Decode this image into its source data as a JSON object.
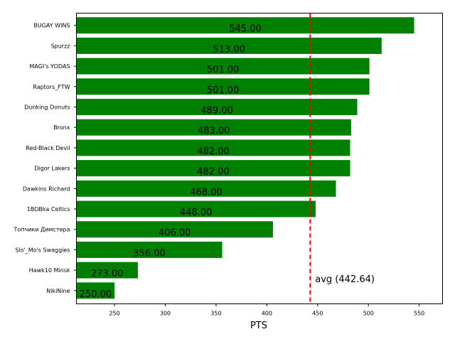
{
  "chart_data": {
    "type": "bar",
    "orientation": "horizontal",
    "title": "",
    "xlabel": "PTS",
    "ylabel": "",
    "xlim": [
      212.5,
      573
    ],
    "xticks": [
      250,
      300,
      350,
      400,
      450,
      500,
      550
    ],
    "grid": false,
    "bar_color": "#008000",
    "categories": [
      "BUGAY WINS",
      "Spurzz",
      "MAGI's YODAS",
      "Raptors_FTW",
      "Dunking Donuts",
      "Bronx",
      "Red-Black Devil",
      "Digor Lakers",
      "Dawkins Richard",
      "1BOBka Celtics",
      "Топчики Димстера",
      "Slo'_Mo's Swaggies",
      "Hawk10 Minsk",
      "NikiNine"
    ],
    "values": [
      545,
      513,
      501,
      501,
      489,
      483,
      482,
      482,
      468,
      448,
      406,
      356,
      273,
      250
    ],
    "value_labels": [
      "545.00",
      "513.00",
      "501.00",
      "501.00",
      "489.00",
      "483.00",
      "482.00",
      "482.00",
      "468.00",
      "448.00",
      "406.00",
      "356.00",
      "273.00",
      "250.00"
    ],
    "average": {
      "value": 442.64,
      "label": "avg (442.64)",
      "color": "#ff0000",
      "style": "dashed"
    }
  }
}
